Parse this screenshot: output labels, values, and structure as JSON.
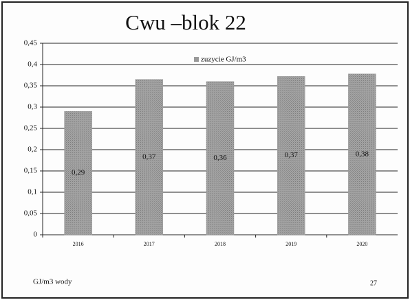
{
  "chart_data": {
    "type": "bar",
    "title": "Cwu –blok 22",
    "categories": [
      "2016",
      "2017",
      "2018",
      "2019",
      "2020"
    ],
    "series": [
      {
        "name": "zuzycie GJ/m3",
        "color": "#9a9a9a",
        "values": [
          0.29,
          0.365,
          0.36,
          0.372,
          0.378
        ],
        "value_labels": [
          "0,29",
          "0,37",
          "0,36",
          "0,37",
          "0,38"
        ]
      }
    ],
    "ylim": [
      0,
      0.45
    ],
    "yticks": [
      0,
      {
        "value": 0.05,
        "label": "0,05"
      },
      {
        "value": 0.1,
        "label": "0,1"
      },
      {
        "value": 0.15,
        "label": "0,15"
      },
      {
        "value": 0.2,
        "label": "0,2"
      },
      {
        "value": 0.25,
        "label": "0,25"
      },
      {
        "value": 0.3,
        "label": "0,3"
      },
      {
        "value": 0.35,
        "label": "0,35"
      },
      {
        "value": 0.4,
        "label": "0,4"
      },
      {
        "value": 0.45,
        "label": "0,45"
      }
    ],
    "grid": true,
    "legend": "top",
    "footer": "GJ/m3 wody",
    "page_number": "27"
  }
}
